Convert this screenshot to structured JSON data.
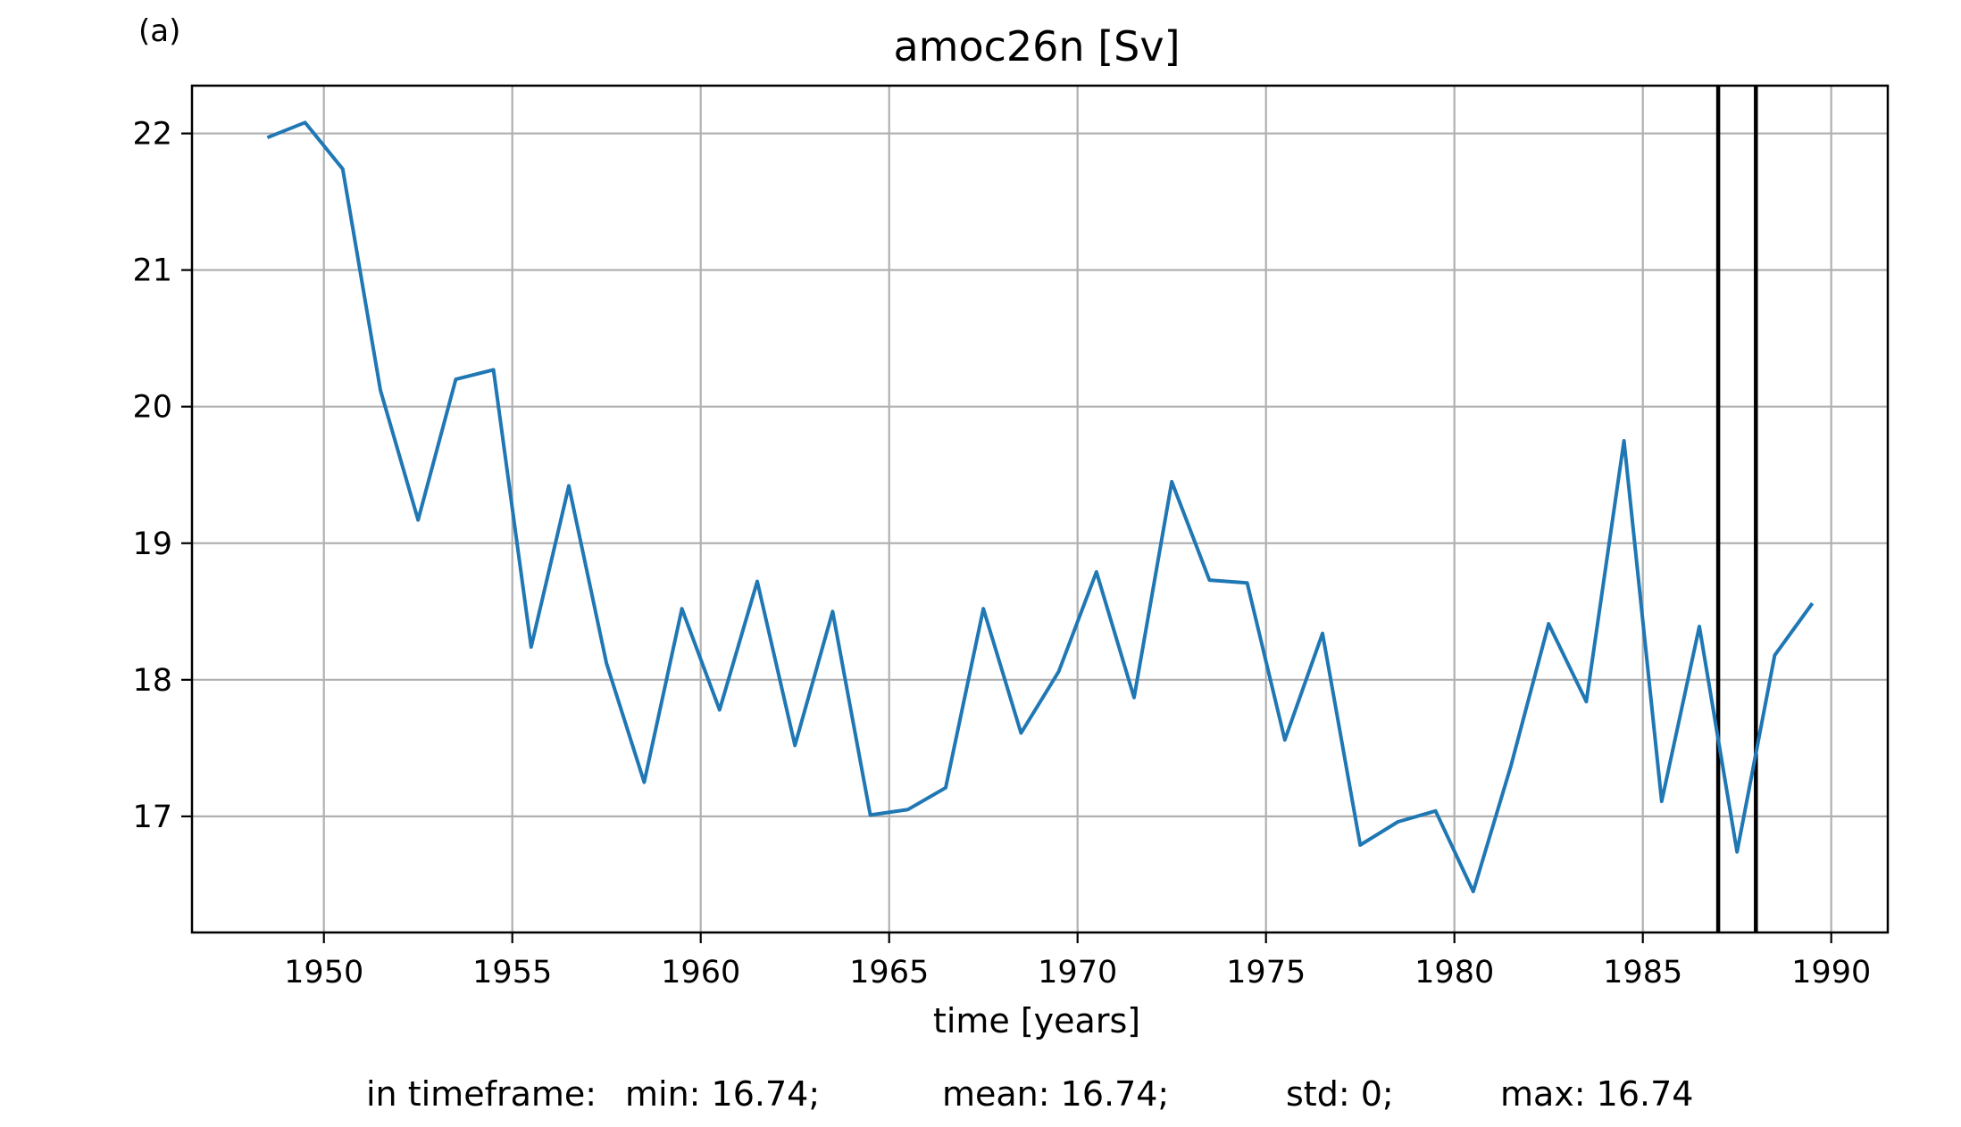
{
  "chart_data": {
    "type": "line",
    "title": "amoc26n [Sv]",
    "panel_label": "(a)",
    "xlabel": "time [years]",
    "ylabel": "",
    "xlim": [
      1946.5,
      1991.5
    ],
    "ylim": [
      16.15,
      22.35
    ],
    "xticks": [
      1950,
      1955,
      1960,
      1965,
      1970,
      1975,
      1980,
      1985,
      1990
    ],
    "yticks": [
      17,
      18,
      19,
      20,
      21,
      22
    ],
    "grid": true,
    "series": [
      {
        "name": "",
        "color": "#1f77b4",
        "x": [
          1948.5,
          1949.5,
          1950.5,
          1951.5,
          1952.5,
          1953.5,
          1954.5,
          1955.5,
          1956.5,
          1957.5,
          1958.5,
          1959.5,
          1960.5,
          1961.5,
          1962.5,
          1963.5,
          1964.5,
          1965.5,
          1966.5,
          1967.5,
          1968.5,
          1969.5,
          1970.5,
          1971.5,
          1972.5,
          1973.5,
          1974.5,
          1975.5,
          1976.5,
          1977.5,
          1978.5,
          1979.5,
          1980.5,
          1981.5,
          1982.5,
          1983.5,
          1984.5,
          1985.5,
          1986.5,
          1987.5,
          1988.5,
          1989.5
        ],
        "y": [
          21.97,
          22.08,
          21.74,
          20.12,
          19.17,
          20.2,
          20.27,
          18.24,
          19.42,
          18.12,
          17.25,
          18.52,
          17.78,
          18.72,
          17.52,
          18.5,
          17.01,
          17.05,
          17.21,
          18.52,
          17.61,
          18.06,
          18.79,
          17.87,
          19.45,
          18.73,
          18.71,
          17.56,
          18.34,
          16.79,
          16.96,
          17.04,
          16.45,
          17.37,
          18.41,
          17.84,
          19.75,
          17.11,
          18.39,
          16.74,
          18.18,
          18.56
        ]
      }
    ],
    "vlines": {
      "x": [
        1987.0,
        1988.0
      ],
      "color": "#000000"
    },
    "stats": {
      "prefix": "in timeframe:",
      "min": "min: 16.74;",
      "mean": "mean: 16.74;",
      "std": "std: 0;",
      "max": "max: 16.74"
    }
  }
}
